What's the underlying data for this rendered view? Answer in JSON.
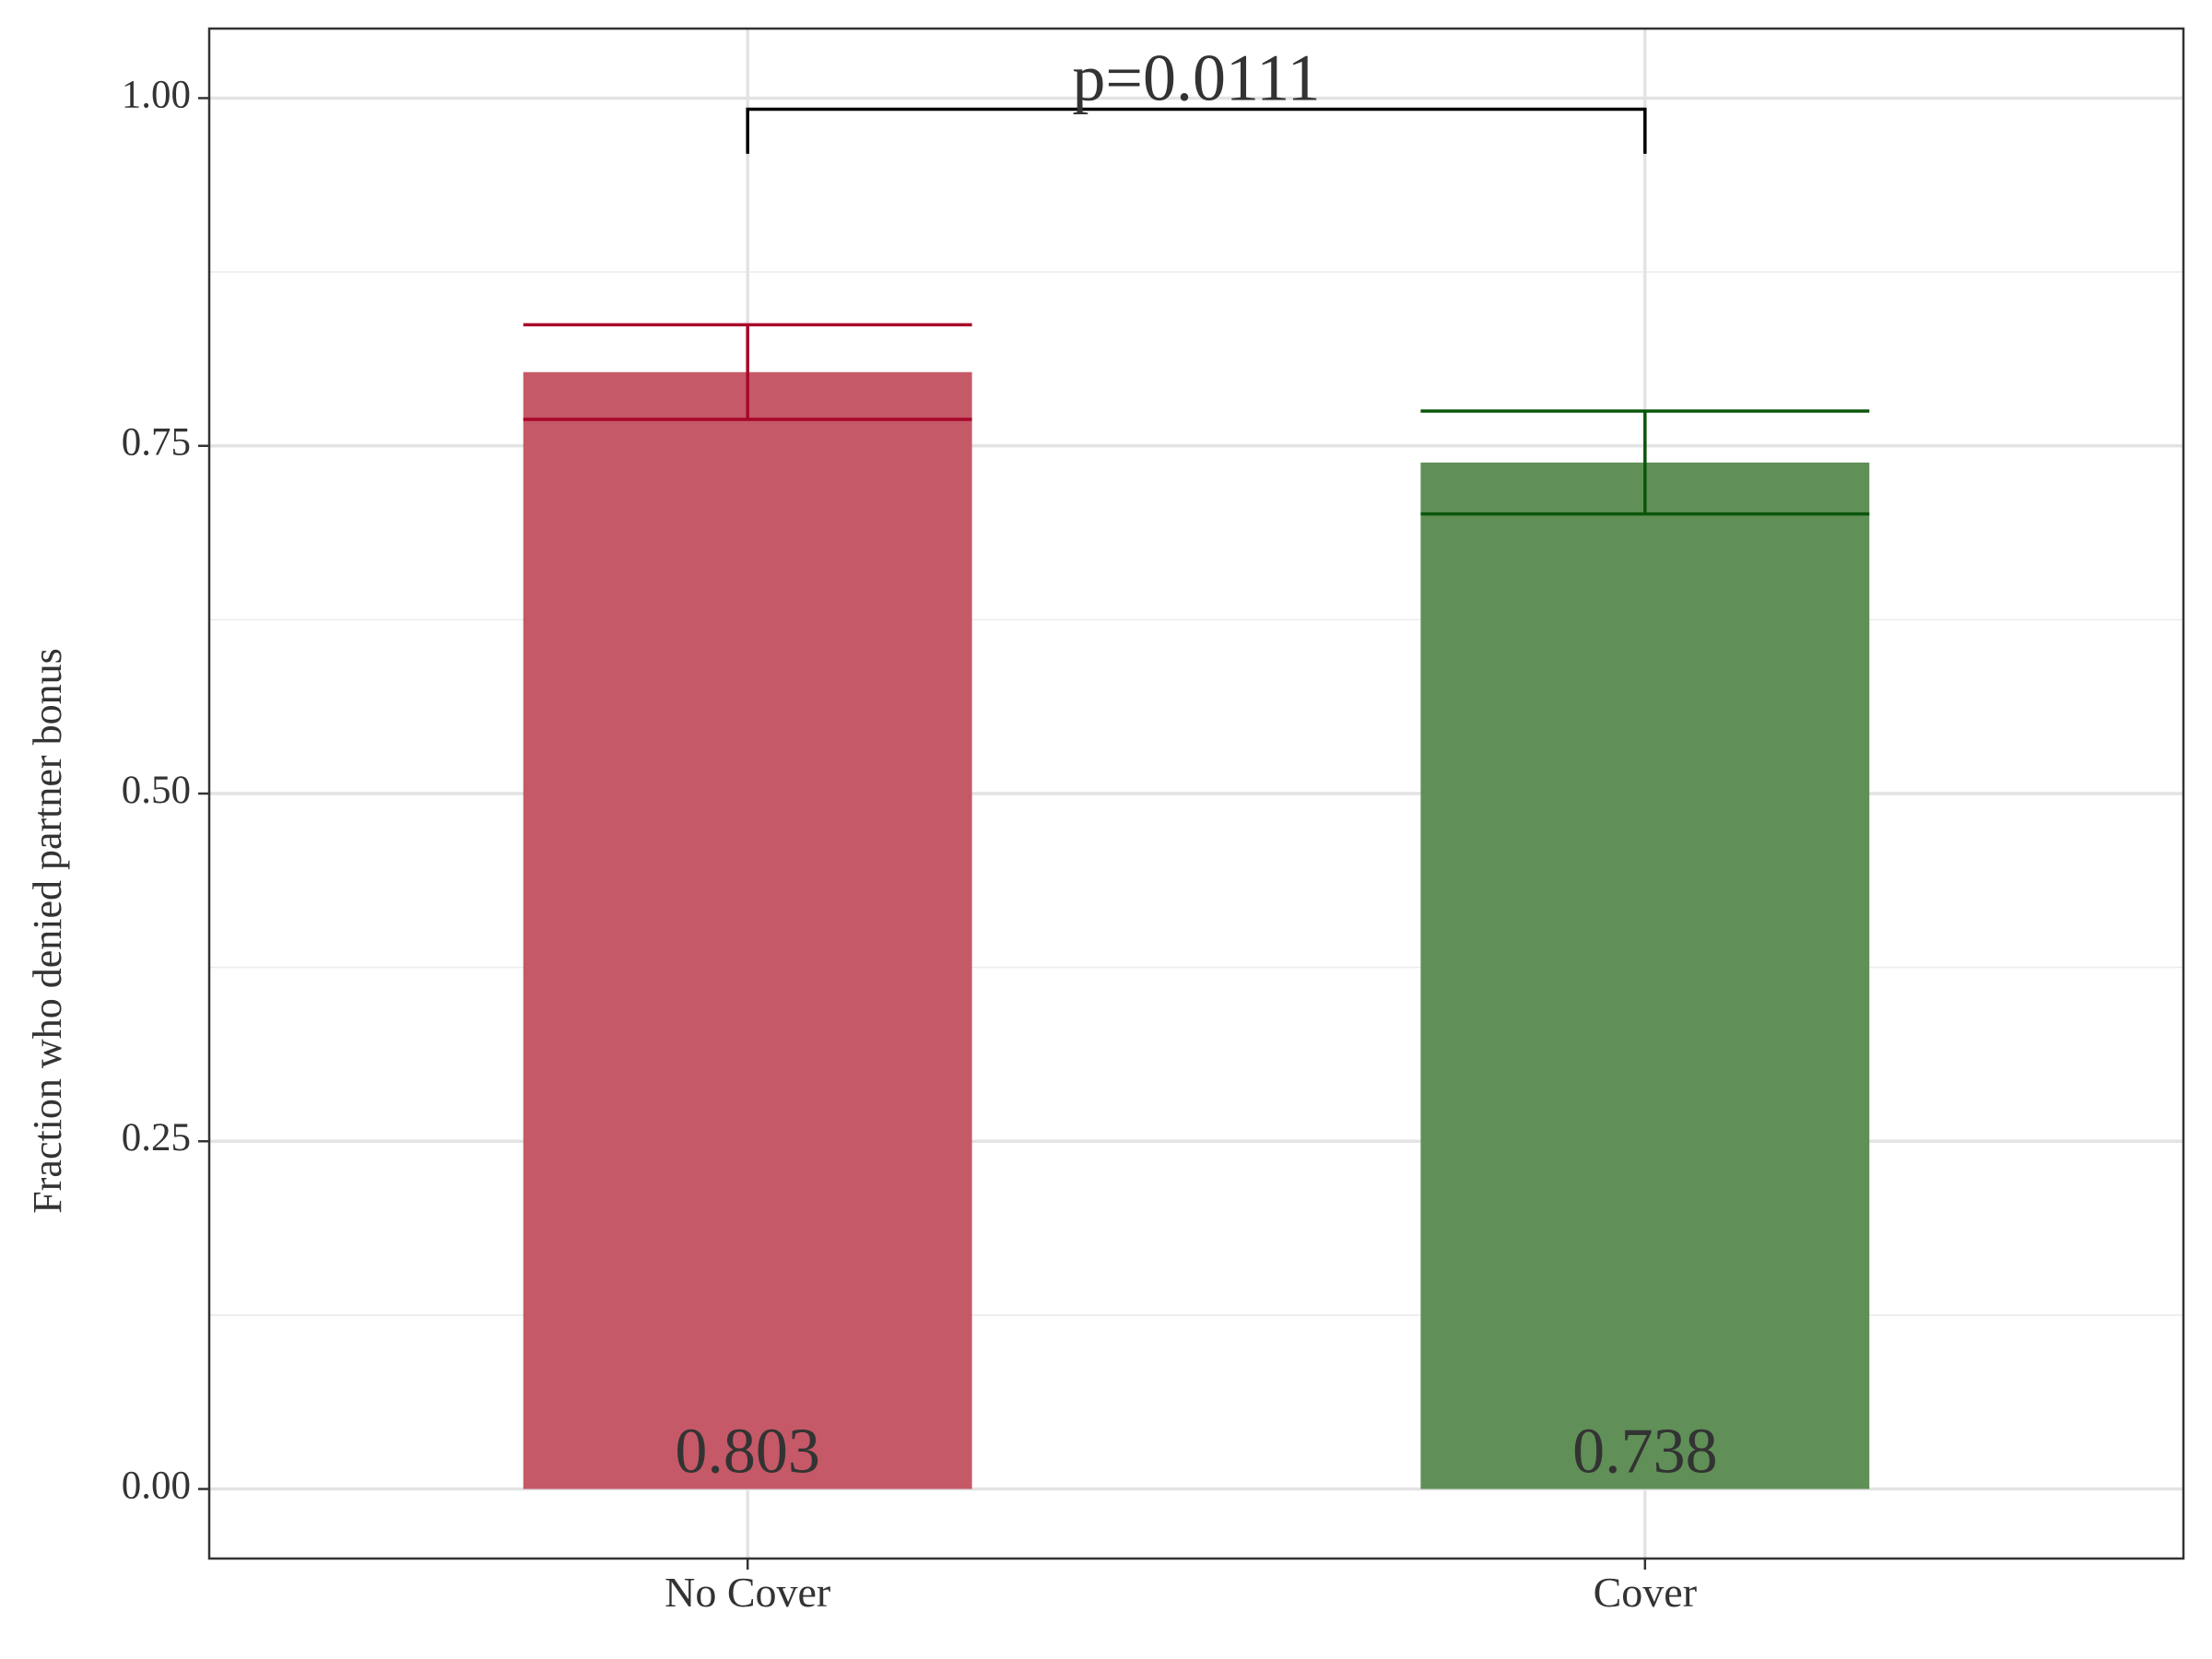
{
  "chart_data": {
    "type": "bar",
    "y_label": "Fraction who denied partner bonus",
    "categories": [
      "No Cover",
      "Cover"
    ],
    "values": [
      0.803,
      0.738
    ],
    "errors": [
      0.034,
      0.037
    ],
    "colors": [
      "#c55967",
      "#608f57"
    ],
    "error_colors": [
      "#a8072a",
      "#0b560b"
    ],
    "show_values": true,
    "ylim": [
      -0.05,
      1.05
    ],
    "yticks": [
      {
        "value": 0,
        "label": "0.00"
      },
      {
        "value": 0.25,
        "label": "0.25"
      },
      {
        "value": 0.5,
        "label": "0.50"
      },
      {
        "value": 0.75,
        "label": "0.75"
      },
      {
        "value": 1,
        "label": "1.00"
      }
    ],
    "minor_yticks": [
      0.125,
      0.375,
      0.625,
      0.875
    ],
    "grid": true,
    "bracket": {
      "label": "p=0.0111",
      "between": [
        0,
        1
      ],
      "y": 0.992,
      "y_ends": 0.96
    }
  }
}
